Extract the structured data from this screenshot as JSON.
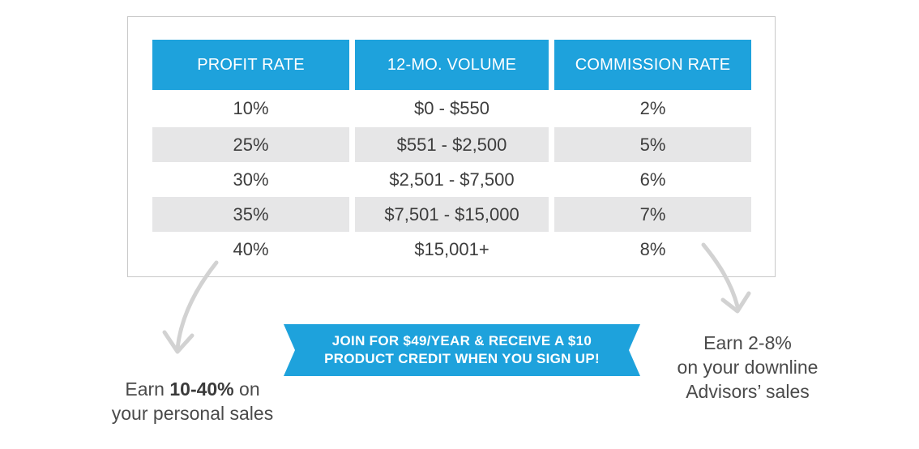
{
  "table": {
    "headers": [
      "PROFIT RATE",
      "12-MO. VOLUME",
      "COMMISSION RATE"
    ],
    "rows": [
      [
        "10%",
        "$0 - $550",
        "2%"
      ],
      [
        "25%",
        "$551 - $2,500",
        "5%"
      ],
      [
        "30%",
        "$2,501 - $7,500",
        "6%"
      ],
      [
        "35%",
        "$7,501 - $15,000",
        "7%"
      ],
      [
        "40%",
        "$15,001+",
        "8%"
      ]
    ]
  },
  "banner": {
    "line1": "JOIN FOR $49/YEAR & RECEIVE A $10",
    "line2": "PRODUCT CREDIT WHEN YOU SIGN UP!"
  },
  "left_note": {
    "prefix": "Earn ",
    "highlight": "10-40%",
    "suffix": " on",
    "line2": "your personal sales"
  },
  "right_note": {
    "line1": "Earn 2-8%",
    "line2": "on your downline",
    "line3": "Advisors’ sales"
  },
  "colors": {
    "header_blue": "#1ea2dc",
    "stripe_gray": "#e6e6e7",
    "arrow_gray": "#d2d2d2"
  },
  "icons": [
    "curved-arrow-down-left-icon",
    "curved-arrow-down-right-icon"
  ]
}
